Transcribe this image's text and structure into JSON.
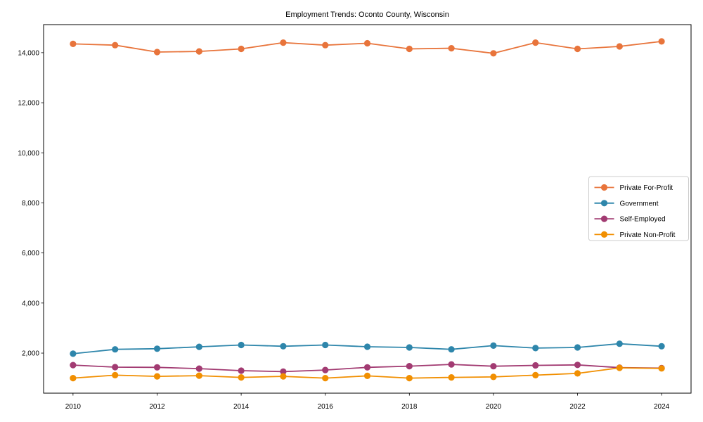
{
  "chart_data": {
    "type": "line",
    "title": "Employment Trends: Oconto County, Wisconsin",
    "xlabel": "",
    "ylabel": "",
    "grid": false,
    "legend_position": "center right",
    "x": [
      2010,
      2011,
      2012,
      2013,
      2014,
      2015,
      2016,
      2017,
      2018,
      2019,
      2020,
      2021,
      2022,
      2023,
      2024
    ],
    "xticks": [
      2010,
      2012,
      2014,
      2016,
      2018,
      2020,
      2022,
      2024
    ],
    "xtick_labels": [
      "2010",
      "2012",
      "2014",
      "2016",
      "2018",
      "2020",
      "2022",
      "2024"
    ],
    "yticks": [
      2000,
      4000,
      6000,
      8000,
      10000,
      12000,
      14000
    ],
    "ytick_labels": [
      "2,000",
      "4,000",
      "6,000",
      "8,000",
      "10,000",
      "12,000",
      "14,000"
    ],
    "xlim": [
      2009.3,
      2024.7
    ],
    "ylim": [
      400,
      15120
    ],
    "series": [
      {
        "name": "Private For-Profit",
        "color": "#E8743B",
        "values": [
          14350,
          14300,
          14025,
          14050,
          14150,
          14400,
          14300,
          14375,
          14150,
          14175,
          13975,
          14400,
          14150,
          14250,
          14450
        ]
      },
      {
        "name": "Government",
        "color": "#2E86AB",
        "values": [
          1975,
          2150,
          2175,
          2250,
          2325,
          2275,
          2325,
          2255,
          2225,
          2150,
          2300,
          2200,
          2225,
          2375,
          2275
        ]
      },
      {
        "name": "Self-Employed",
        "color": "#A23B72",
        "values": [
          1520,
          1440,
          1430,
          1380,
          1300,
          1260,
          1325,
          1430,
          1480,
          1550,
          1475,
          1510,
          1530,
          1420,
          1400
        ]
      },
      {
        "name": "Private Non-Profit",
        "color": "#F18F01",
        "values": [
          1000,
          1120,
          1070,
          1100,
          1030,
          1070,
          1000,
          1090,
          1000,
          1030,
          1050,
          1120,
          1190,
          1410,
          1390
        ]
      }
    ]
  }
}
